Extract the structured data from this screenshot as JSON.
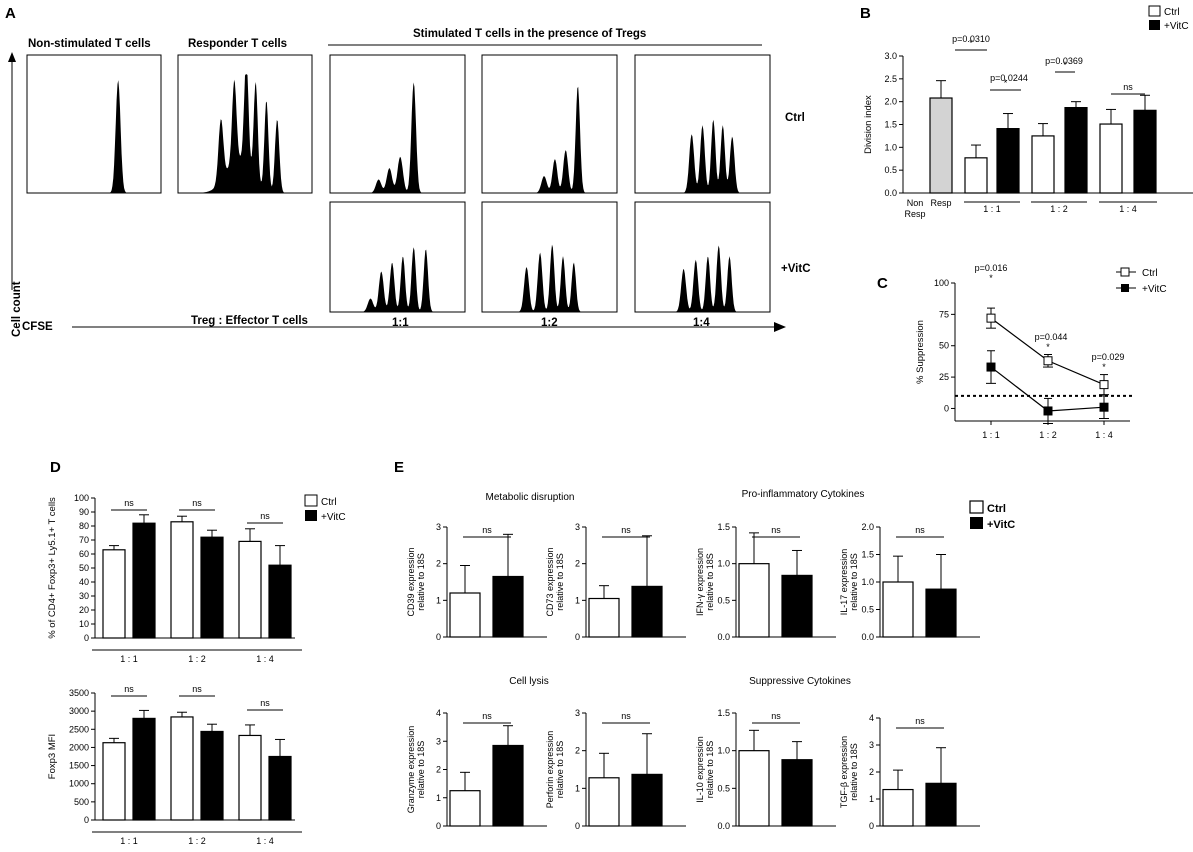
{
  "panel_labels": {
    "a": "A",
    "b": "B",
    "c": "C",
    "d": "D",
    "e": "E"
  },
  "panel_a": {
    "label_nonstim": "Non-stimulated T cells",
    "label_resp": "Responder T cells",
    "label_stim": "Stimulated T cells in the presence of Tregs",
    "row_ctrl": "Ctrl",
    "row_vitc": "+VitC",
    "ratio_title": "Treg : Effector T cells",
    "ratios": [
      "1:1",
      "1:2",
      "1:4"
    ],
    "y_axis": "Cell count",
    "x_axis": "CFSE"
  },
  "legend": {
    "ctrl": "Ctrl",
    "vitc": "+VitC"
  },
  "chart_data": [
    {
      "id": "B",
      "type": "bar",
      "ylabel": "Division index",
      "ylim": [
        0,
        3.0
      ],
      "yticks": [
        "0.0",
        "0.5",
        "1.0",
        "1.5",
        "2.0",
        "2.5",
        "3.0"
      ],
      "groups": [
        "1 : 1",
        "1 : 2",
        "1 : 4"
      ],
      "xlabels": [
        "Non",
        "Resp",
        "Resp"
      ],
      "bars": [
        {
          "group": "Resp",
          "series": "Resp",
          "value": 2.08,
          "err": 0.38
        },
        {
          "group": "1 : 1",
          "series": "Ctrl",
          "value": 0.77,
          "err": 0.28
        },
        {
          "group": "1 : 1",
          "series": "+VitC",
          "value": 1.41,
          "err": 0.33
        },
        {
          "group": "1 : 2",
          "series": "Ctrl",
          "value": 1.25,
          "err": 0.27
        },
        {
          "group": "1 : 2",
          "series": "+VitC",
          "value": 1.87,
          "err": 0.13
        },
        {
          "group": "1 : 4",
          "series": "Ctrl",
          "value": 1.51,
          "err": 0.32
        },
        {
          "group": "1 : 4",
          "series": "+VitC",
          "value": 1.81,
          "err": 0.33
        }
      ],
      "annotations": [
        "p=0.0310",
        "*",
        "p=0.0244",
        "*",
        "p=0.0369",
        "*",
        "ns"
      ]
    },
    {
      "id": "C",
      "type": "line",
      "ylabel": "% Suppression",
      "ylim": [
        -10,
        100
      ],
      "yticks": [
        "0",
        "25",
        "50",
        "75",
        "100"
      ],
      "categories": [
        "1 : 1",
        "1 : 2",
        "1 : 4"
      ],
      "series": [
        {
          "name": "Ctrl",
          "values": [
            72,
            38,
            19
          ],
          "err": [
            8,
            5,
            8
          ]
        },
        {
          "name": "+VitC",
          "values": [
            33,
            -2,
            1
          ],
          "err": [
            13,
            10,
            9
          ]
        }
      ],
      "threshold": 10,
      "annotations": [
        "p=0.016",
        "*",
        "p=0.044",
        "*",
        "p=0.029",
        "*"
      ]
    },
    {
      "id": "D1",
      "type": "bar",
      "ylabel": "% of CD4+ Foxp3+ Ly5.1+ T cells",
      "ylim": [
        0,
        100
      ],
      "yticks": [
        "0",
        "10",
        "20",
        "30",
        "40",
        "50",
        "60",
        "70",
        "80",
        "90",
        "100"
      ],
      "categories": [
        "1 : 1",
        "1 : 2",
        "1 : 4"
      ],
      "series": [
        {
          "name": "Ctrl",
          "values": [
            63,
            83,
            69
          ],
          "err": [
            3,
            4,
            9
          ]
        },
        {
          "name": "+VitC",
          "values": [
            82,
            72,
            52
          ],
          "err": [
            6,
            5,
            14
          ]
        }
      ],
      "annotations": [
        "ns",
        "ns",
        "ns"
      ]
    },
    {
      "id": "D2",
      "type": "bar",
      "ylabel": "Foxp3 MFI",
      "ylim": [
        0,
        3500
      ],
      "yticks": [
        "0",
        "500",
        "1000",
        "1500",
        "2000",
        "2500",
        "3000",
        "3500"
      ],
      "categories": [
        "1 : 1",
        "1 : 2",
        "1 : 4"
      ],
      "series": [
        {
          "name": "Ctrl",
          "values": [
            2130,
            2840,
            2330
          ],
          "err": [
            120,
            130,
            290
          ]
        },
        {
          "name": "+VitC",
          "values": [
            2800,
            2440,
            1750
          ],
          "err": [
            220,
            200,
            470
          ]
        }
      ],
      "annotations": [
        "ns",
        "ns",
        "ns"
      ]
    },
    {
      "id": "E1",
      "type": "bar",
      "title": "Metabolic disruption",
      "ylabel": "CD39 expression relative to 18S",
      "ylim": [
        0,
        3
      ],
      "yticks": [
        "0",
        "1",
        "2",
        "3"
      ],
      "series": [
        {
          "name": "Ctrl",
          "values": [
            1.2
          ],
          "err": [
            0.75
          ]
        },
        {
          "name": "+VitC",
          "values": [
            1.65
          ],
          "err": [
            1.15
          ]
        }
      ],
      "annotations": [
        "ns"
      ]
    },
    {
      "id": "E2",
      "type": "bar",
      "title": "",
      "ylabel": "CD73 expression relative to 18S",
      "ylim": [
        0,
        3
      ],
      "yticks": [
        "0",
        "1",
        "2",
        "3"
      ],
      "series": [
        {
          "name": "Ctrl",
          "values": [
            1.05
          ],
          "err": [
            0.35
          ]
        },
        {
          "name": "+VitC",
          "values": [
            1.38
          ],
          "err": [
            1.38
          ]
        }
      ],
      "annotations": [
        "ns"
      ]
    },
    {
      "id": "E3",
      "type": "bar",
      "title": "Pro-inflammatory Cytokines",
      "ylabel": "IFN-γ expression relative to 18S",
      "ylim": [
        0,
        1.5
      ],
      "yticks": [
        "0.0",
        "0.5",
        "1.0",
        "1.5"
      ],
      "series": [
        {
          "name": "Ctrl",
          "values": [
            1.0
          ],
          "err": [
            0.42
          ]
        },
        {
          "name": "+VitC",
          "values": [
            0.84
          ],
          "err": [
            0.34
          ]
        }
      ],
      "annotations": [
        "ns"
      ]
    },
    {
      "id": "E4",
      "type": "bar",
      "title": "",
      "ylabel": "IL-17 expression relative to 18S",
      "ylim": [
        0,
        2.0
      ],
      "yticks": [
        "0.0",
        "0.5",
        "1.0",
        "1.5",
        "2.0"
      ],
      "series": [
        {
          "name": "Ctrl",
          "values": [
            1.0
          ],
          "err": [
            0.47
          ]
        },
        {
          "name": "+VitC",
          "values": [
            0.87
          ],
          "err": [
            0.63
          ]
        }
      ],
      "annotations": [
        "ns"
      ]
    },
    {
      "id": "E5",
      "type": "bar",
      "title": "Cell lysis",
      "ylabel": "Granzyme expression relative to 18S",
      "ylim": [
        0,
        4
      ],
      "yticks": [
        "0",
        "1",
        "2",
        "3",
        "4"
      ],
      "series": [
        {
          "name": "Ctrl",
          "values": [
            1.25
          ],
          "err": [
            0.65
          ]
        },
        {
          "name": "+VitC",
          "values": [
            2.85
          ],
          "err": [
            0.7
          ]
        }
      ],
      "annotations": [
        "ns"
      ]
    },
    {
      "id": "E6",
      "type": "bar",
      "title": "",
      "ylabel": "Perforin expression relative to 18S",
      "ylim": [
        0,
        3
      ],
      "yticks": [
        "0",
        "1",
        "2",
        "3"
      ],
      "series": [
        {
          "name": "Ctrl",
          "values": [
            1.28
          ],
          "err": [
            0.65
          ]
        },
        {
          "name": "+VitC",
          "values": [
            1.37
          ],
          "err": [
            1.08
          ]
        }
      ],
      "annotations": [
        "ns"
      ]
    },
    {
      "id": "E7",
      "type": "bar",
      "title": "Suppressive Cytokines",
      "ylabel": "IL-10 expression relative to 18S",
      "ylim": [
        0,
        1.5
      ],
      "yticks": [
        "0.0",
        "0.5",
        "1.0",
        "1.5"
      ],
      "series": [
        {
          "name": "Ctrl",
          "values": [
            1.0
          ],
          "err": [
            0.27
          ]
        },
        {
          "name": "+VitC",
          "values": [
            0.88
          ],
          "err": [
            0.24
          ]
        }
      ],
      "annotations": [
        "ns"
      ]
    },
    {
      "id": "E8",
      "type": "bar",
      "title": "",
      "ylabel": "TGF-β expression relative to 18S",
      "ylim": [
        0,
        4
      ],
      "yticks": [
        "0",
        "1",
        "2",
        "3",
        "4"
      ],
      "series": [
        {
          "name": "Ctrl",
          "values": [
            1.35
          ],
          "err": [
            0.72
          ]
        },
        {
          "name": "+VitC",
          "values": [
            1.58
          ],
          "err": [
            1.32
          ]
        }
      ],
      "annotations": [
        "ns"
      ]
    }
  ]
}
